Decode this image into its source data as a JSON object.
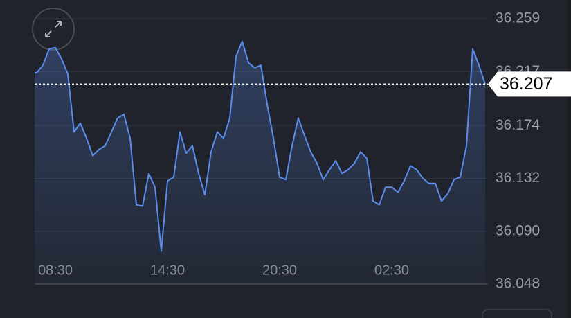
{
  "chart_data": {
    "type": "line",
    "categories": [
      null,
      null,
      null,
      "08:30",
      null,
      null,
      null,
      null,
      null,
      null,
      null,
      null,
      null,
      null,
      null,
      null,
      null,
      null,
      null,
      null,
      null,
      "14:30",
      null,
      null,
      null,
      null,
      null,
      null,
      null,
      null,
      null,
      null,
      null,
      null,
      null,
      null,
      null,
      null,
      null,
      "20:30",
      null,
      null,
      null,
      null,
      null,
      null,
      null,
      null,
      null,
      null,
      null,
      null,
      null,
      null,
      null,
      null,
      null,
      "02:30",
      null,
      null,
      null,
      null,
      null,
      null,
      null,
      null,
      null,
      null,
      null,
      null,
      null,
      null,
      null
    ],
    "series": [
      {
        "color": "#5b8def",
        "values": [
          36.216,
          36.222,
          36.235,
          36.236,
          36.227,
          36.215,
          36.169,
          36.176,
          36.164,
          36.15,
          36.155,
          36.158,
          36.169,
          36.18,
          36.183,
          36.164,
          36.111,
          36.11,
          36.136,
          36.125,
          36.074,
          36.13,
          36.133,
          36.169,
          36.152,
          36.158,
          36.136,
          36.119,
          36.153,
          36.169,
          36.164,
          36.18,
          36.229,
          36.241,
          36.224,
          36.22,
          36.222,
          36.191,
          36.164,
          36.133,
          36.131,
          36.158,
          36.18,
          36.166,
          36.153,
          36.144,
          36.131,
          36.139,
          36.146,
          36.136,
          36.139,
          36.144,
          36.153,
          36.148,
          36.114,
          36.111,
          36.125,
          36.125,
          36.121,
          36.13,
          36.142,
          36.139,
          36.132,
          36.128,
          36.128,
          36.114,
          36.12,
          36.131,
          36.133,
          36.158,
          36.235,
          36.222,
          36.207
        ]
      }
    ],
    "last_price": 36.207,
    "ylim": [
      36.048,
      36.259
    ],
    "yticks": [
      36.259,
      36.217,
      36.174,
      36.132,
      {
        "value": 36.09,
        "label": "36.090"
      },
      36.048
    ],
    "grid": true
  }
}
